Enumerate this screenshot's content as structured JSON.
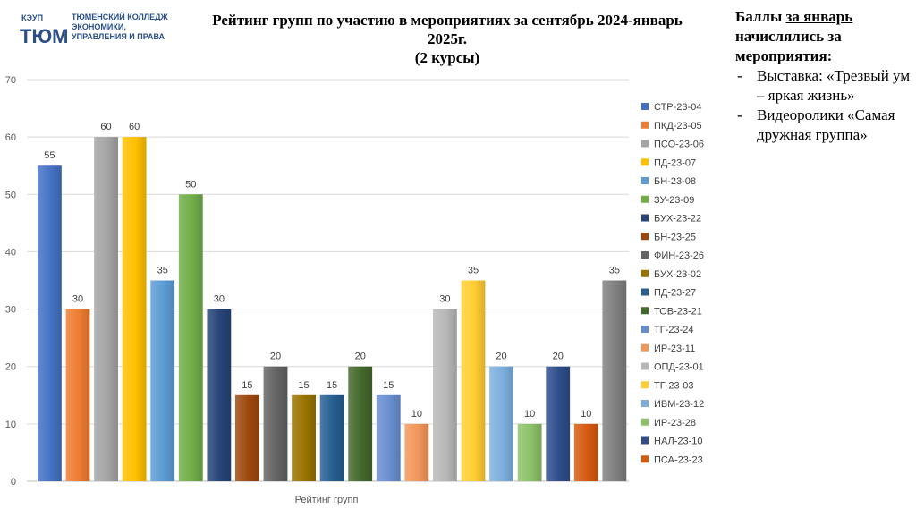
{
  "logo": {
    "abbr": "ТЮМ",
    "abbr_small": "КЭУП",
    "org_lines": [
      "ТЮМЕНСКИЙ КОЛЛЕДЖ",
      "ЭКОНОМИКИ,",
      "УПРАВЛЕНИЯ И ПРАВА"
    ]
  },
  "title_lines": [
    "Рейтинг групп по участию в мероприятиях за сентябрь 2024-январь",
    "2025г.",
    "(2 курсы)"
  ],
  "note": {
    "hdr_pre": "Баллы ",
    "hdr_underlined": "за январь",
    "hdr_post": " начислялись за мероприятия:",
    "dash": "-",
    "items": [
      "Выставка: «Трезвый ум – яркая жизнь»",
      "Видеоролики «Самая дружная группа»"
    ]
  },
  "chart_data": {
    "type": "bar",
    "xlabel": "Рейтинг групп",
    "ylabel": "",
    "ylim": [
      0,
      70
    ],
    "yticks": [
      0,
      10,
      20,
      30,
      40,
      50,
      60,
      70
    ],
    "grid": true,
    "legend_position": "right",
    "series": [
      {
        "name": "СТР-23-04",
        "values": [
          55
        ],
        "color": "#4472c4"
      },
      {
        "name": "ПКД-23-05",
        "values": [
          30
        ],
        "color": "#ed7d31"
      },
      {
        "name": "ПСО-23-06",
        "values": [
          60
        ],
        "color": "#a5a5a5"
      },
      {
        "name": "ПД-23-07",
        "values": [
          60
        ],
        "color": "#ffc000"
      },
      {
        "name": "БН-23-08",
        "values": [
          35
        ],
        "color": "#5b9bd5"
      },
      {
        "name": "ЗУ-23-09",
        "values": [
          50
        ],
        "color": "#70ad47"
      },
      {
        "name": "БУХ-23-22",
        "values": [
          30
        ],
        "color": "#264478"
      },
      {
        "name": "БН-23-25",
        "values": [
          15
        ],
        "color": "#9e480e"
      },
      {
        "name": "ФИН-23-26",
        "values": [
          20
        ],
        "color": "#636363"
      },
      {
        "name": "БУХ-23-02",
        "values": [
          15
        ],
        "color": "#997300"
      },
      {
        "name": "ПД-23-27",
        "values": [
          15
        ],
        "color": "#255e91"
      },
      {
        "name": "ТОВ-23-21",
        "values": [
          20
        ],
        "color": "#43682b"
      },
      {
        "name": "ТГ-23-24",
        "values": [
          15
        ],
        "color": "#698ed0"
      },
      {
        "name": "ИР-23-11",
        "values": [
          10
        ],
        "color": "#f1975a"
      },
      {
        "name": "ОПД-23-01",
        "values": [
          30
        ],
        "color": "#b7b7b7"
      },
      {
        "name": "ТГ-23-03",
        "values": [
          35
        ],
        "color": "#ffcd33"
      },
      {
        "name": "ИВМ-23-12",
        "values": [
          20
        ],
        "color": "#7cafdd"
      },
      {
        "name": "ИР-23-28",
        "values": [
          10
        ],
        "color": "#8cc168"
      },
      {
        "name": "НАЛ-23-10",
        "values": [
          20
        ],
        "color": "#2e4d8a"
      },
      {
        "name": "ПСА-23-23",
        "values": [
          10
        ],
        "color": "#d55a0f"
      },
      {
        "name": "",
        "values": [
          35
        ],
        "color": "#7f7f7f"
      }
    ]
  }
}
